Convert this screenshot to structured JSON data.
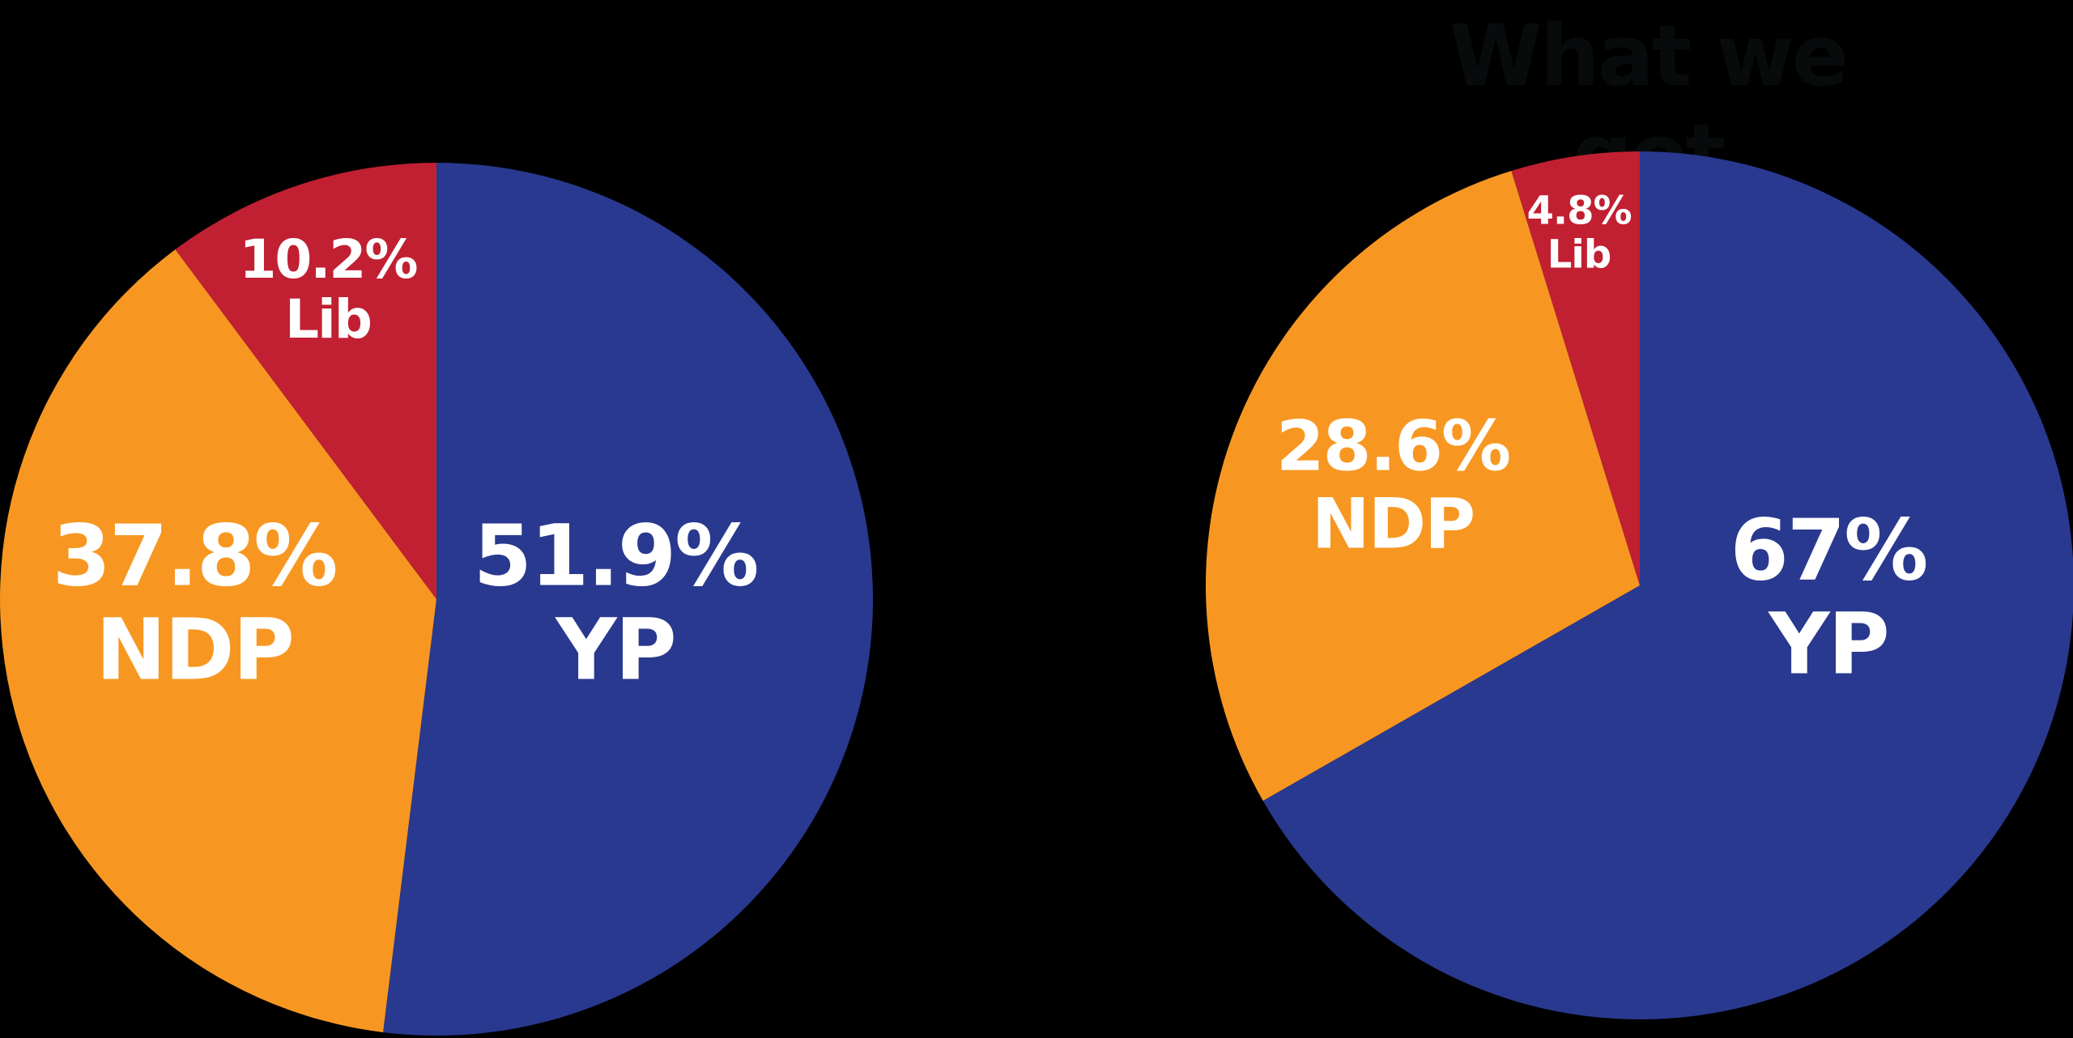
{
  "title_right": "What we got",
  "colors": {
    "YP": "#29398f",
    "NDP": "#f79722",
    "Lib": "#c12032",
    "background": "#000000"
  },
  "chart_data": [
    {
      "type": "pie",
      "title": "",
      "start_angle": "12 o'clock, clockwise",
      "categories": [
        "YP",
        "NDP",
        "Lib"
      ],
      "values": [
        51.9,
        37.8,
        10.2
      ],
      "labels": [
        "51.9%",
        "37.8%",
        "10.2%"
      ],
      "colors": [
        "#29398f",
        "#f79722",
        "#c12032"
      ]
    },
    {
      "type": "pie",
      "title": "What we got",
      "start_angle": "12 o'clock, clockwise",
      "categories": [
        "YP",
        "NDP",
        "Lib"
      ],
      "values": [
        67,
        28.6,
        4.8
      ],
      "labels": [
        "67%",
        "28.6%",
        "4.8%"
      ],
      "colors": [
        "#29398f",
        "#f79722",
        "#c12032"
      ]
    }
  ],
  "left": {
    "yp": {
      "pct": "51.9%",
      "party": "YP"
    },
    "ndp": {
      "pct": "37.8%",
      "party": "NDP"
    },
    "lib": {
      "pct": "10.2%",
      "party": "Lib"
    }
  },
  "right": {
    "yp": {
      "pct": "67%",
      "party": "YP"
    },
    "ndp": {
      "pct": "28.6%",
      "party": "NDP"
    },
    "lib": {
      "pct": "4.8%",
      "party": "Lib"
    }
  }
}
